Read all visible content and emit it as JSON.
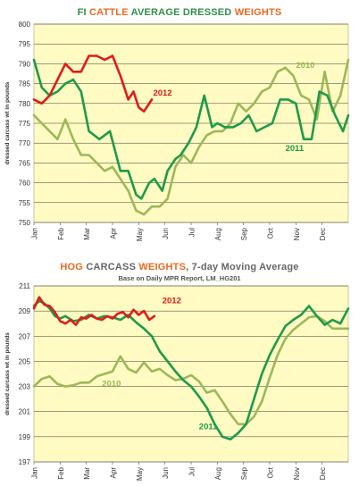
{
  "months": [
    "Jan",
    "Feb",
    "Mar",
    "Apr",
    "May",
    "Jun",
    "Jul",
    "Aug",
    "Sep",
    "Oct",
    "Nov",
    "Dec"
  ],
  "chart_data": [
    {
      "type": "line",
      "title_parts": [
        {
          "text": "FI ",
          "color": "#2f8f4a"
        },
        {
          "text": "CATTLE",
          "color": "#e86a1e"
        },
        {
          "text": " AVERAGE DRESSED ",
          "color": "#2f8f4a"
        },
        {
          "text": "WEIGHTS",
          "color": "#e86a1e"
        }
      ],
      "subtitle": "",
      "ylabel": "dressed carcass wt in pounds",
      "ylim": [
        750,
        800
      ],
      "yticks": [
        750,
        755,
        760,
        765,
        770,
        775,
        780,
        785,
        790,
        795,
        800
      ],
      "x_range": [
        0,
        12
      ],
      "series": [
        {
          "name": "2012",
          "color": "#e01b1b",
          "x": [
            0,
            0.3,
            0.6,
            0.9,
            1.2,
            1.5,
            1.8,
            2.1,
            2.4,
            2.7,
            3.0,
            3.3,
            3.6,
            3.8,
            4.0,
            4.2,
            4.5
          ],
          "y": [
            781,
            780,
            782,
            786,
            790,
            788,
            788,
            792,
            792,
            791,
            792,
            787,
            781,
            783,
            779,
            778,
            781
          ]
        },
        {
          "name": "2011",
          "color": "#1e9a4a",
          "x": [
            0,
            0.3,
            0.6,
            0.9,
            1.2,
            1.5,
            1.8,
            2.1,
            2.5,
            2.9,
            3.3,
            3.6,
            3.9,
            4.1,
            4.4,
            4.6,
            4.9,
            5.1,
            5.4,
            5.6,
            5.9,
            6.2,
            6.5,
            6.8,
            7.0,
            7.3,
            7.6,
            7.9,
            8.2,
            8.5,
            8.8,
            9.1,
            9.4,
            9.7,
            10.0,
            10.3,
            10.6,
            10.9,
            11.2,
            11.5,
            11.8,
            12.0
          ],
          "y": [
            791,
            784,
            782,
            783,
            785,
            786,
            783,
            773,
            771,
            773,
            763,
            763,
            757,
            756,
            760,
            761,
            758,
            763,
            766,
            767,
            770,
            774,
            782,
            774,
            775,
            774,
            774,
            775,
            777,
            773,
            774,
            775,
            781,
            781,
            780,
            771,
            771,
            783,
            782,
            777,
            773,
            777
          ]
        },
        {
          "name": "2010",
          "color": "#9cb85a",
          "x": [
            0,
            0.3,
            0.6,
            0.9,
            1.2,
            1.5,
            1.8,
            2.1,
            2.4,
            2.7,
            3.0,
            3.3,
            3.6,
            3.9,
            4.2,
            4.5,
            4.8,
            5.1,
            5.4,
            5.7,
            6.0,
            6.3,
            6.6,
            6.9,
            7.2,
            7.5,
            7.8,
            8.1,
            8.4,
            8.7,
            9.0,
            9.3,
            9.6,
            9.9,
            10.2,
            10.5,
            10.8,
            11.1,
            11.4,
            11.7,
            12.0
          ],
          "y": [
            777,
            775,
            773,
            771,
            776,
            771,
            767,
            767,
            765,
            763,
            764,
            761,
            758,
            753,
            752,
            754,
            754,
            756,
            764,
            767,
            765,
            769,
            772,
            773,
            773,
            775,
            780,
            778,
            780,
            783,
            784,
            788,
            789,
            787,
            782,
            781,
            776,
            788,
            778,
            782,
            791
          ]
        }
      ],
      "labels": [
        {
          "text": "2012",
          "series": "2012",
          "x": 4.55,
          "y": 782
        },
        {
          "text": "2011",
          "series": "2011",
          "x": 9.6,
          "y": 768
        },
        {
          "text": "2010",
          "series": "2010",
          "x": 10.0,
          "y": 789
        }
      ]
    },
    {
      "type": "line",
      "title_parts": [
        {
          "text": "HOG ",
          "color": "#e86a1e"
        },
        {
          "text": "CARCASS ",
          "color": "#666666"
        },
        {
          "text": "WEIGHTS",
          "color": "#e86a1e"
        },
        {
          "text": ", 7-day Moving Average",
          "color": "#666666"
        }
      ],
      "subtitle": "Base on Daily MPR Report, LM_HG201",
      "ylabel": "dressed carcass wt in pounds",
      "ylim": [
        197,
        211
      ],
      "yticks": [
        197,
        199,
        201,
        203,
        205,
        207,
        209,
        211
      ],
      "x_range": [
        0,
        12
      ],
      "series": [
        {
          "name": "2012",
          "color": "#e01b1b",
          "x": [
            0,
            0.2,
            0.4,
            0.6,
            0.8,
            1.0,
            1.2,
            1.4,
            1.6,
            1.8,
            2.0,
            2.2,
            2.4,
            2.6,
            2.8,
            3.0,
            3.2,
            3.4,
            3.6,
            3.8,
            4.0,
            4.2,
            4.4,
            4.6
          ],
          "y": [
            209.2,
            210.1,
            209.5,
            209.4,
            208.9,
            208.2,
            208.0,
            208.3,
            207.9,
            208.5,
            208.4,
            208.7,
            208.4,
            208.3,
            208.6,
            208.4,
            208.8,
            208.9,
            208.5,
            209.1,
            208.7,
            209.0,
            208.3,
            208.6
          ]
        },
        {
          "name": "2011",
          "color": "#1e9a4a",
          "x": [
            0,
            0.2,
            0.4,
            0.6,
            0.8,
            1.0,
            1.2,
            1.5,
            1.8,
            2.1,
            2.4,
            2.7,
            3.0,
            3.3,
            3.6,
            3.9,
            4.2,
            4.5,
            4.8,
            5.1,
            5.4,
            5.7,
            6.0,
            6.3,
            6.6,
            6.9,
            7.2,
            7.5,
            7.8,
            8.1,
            8.4,
            8.7,
            9.0,
            9.3,
            9.6,
            9.9,
            10.2,
            10.5,
            10.8,
            11.1,
            11.4,
            11.7,
            12.0
          ],
          "y": [
            209.4,
            209.8,
            209.6,
            209.2,
            208.6,
            208.4,
            208.6,
            208.2,
            208.3,
            208.7,
            208.4,
            208.6,
            208.5,
            208.3,
            208.7,
            208.1,
            207.6,
            207.0,
            205.8,
            205.0,
            204.2,
            203.5,
            203.0,
            202.2,
            201.3,
            200.0,
            199.0,
            198.8,
            199.3,
            200.0,
            202.0,
            204.0,
            205.5,
            206.7,
            207.8,
            208.3,
            208.7,
            209.4,
            208.6,
            207.9,
            208.3,
            208.0,
            209.2
          ]
        },
        {
          "name": "2010",
          "color": "#9cb85a",
          "x": [
            0,
            0.3,
            0.6,
            0.9,
            1.2,
            1.5,
            1.8,
            2.1,
            2.4,
            2.7,
            3.0,
            3.3,
            3.6,
            3.9,
            4.2,
            4.5,
            4.8,
            5.1,
            5.4,
            5.7,
            6.0,
            6.3,
            6.6,
            6.9,
            7.2,
            7.5,
            7.8,
            8.1,
            8.4,
            8.7,
            9.0,
            9.3,
            9.6,
            9.9,
            10.2,
            10.5,
            10.8,
            11.1,
            11.4,
            11.7,
            12.0
          ],
          "y": [
            203.0,
            203.6,
            203.8,
            203.2,
            203.0,
            203.1,
            203.3,
            203.3,
            203.8,
            204.0,
            204.2,
            205.4,
            204.4,
            204.1,
            204.9,
            204.2,
            204.4,
            203.9,
            203.5,
            203.6,
            203.9,
            203.4,
            202.5,
            202.7,
            201.8,
            200.8,
            200.0,
            200.0,
            200.6,
            201.8,
            203.7,
            205.5,
            206.8,
            207.5,
            208.0,
            208.5,
            208.6,
            208.2,
            207.6,
            207.6,
            207.6
          ]
        }
      ],
      "labels": [
        {
          "text": "2012",
          "series": "2012",
          "x": 4.9,
          "y": 209.6
        },
        {
          "text": "2011",
          "series": "2011",
          "x": 6.3,
          "y": 199.6
        },
        {
          "text": "2010",
          "series": "2010",
          "x": 2.6,
          "y": 203.0
        }
      ]
    }
  ]
}
